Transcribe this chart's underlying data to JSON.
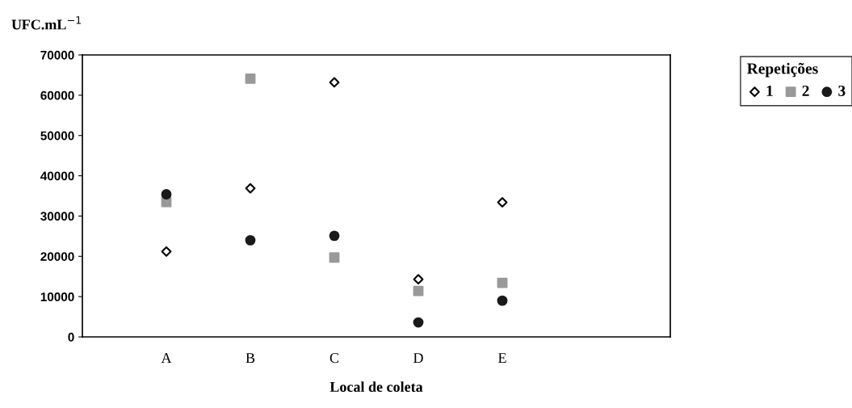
{
  "chart_data": {
    "type": "scatter",
    "xlabel": "Local de coleta",
    "ylabel": "UFC.mL$^{−1}$",
    "legend_title": "Repetições",
    "legend": "top right",
    "categories": [
      "A",
      "B",
      "C",
      "D",
      "E"
    ],
    "ylim": [
      0,
      70000
    ],
    "yticks": [
      0,
      10000,
      20000,
      30000,
      40000,
      50000,
      60000,
      70000
    ],
    "grid": false,
    "series": [
      {
        "name": "1",
        "color": "#ffffff",
        "marker": "diamond",
        "values": [
          21200,
          36900,
          63200,
          14300,
          33400
        ]
      },
      {
        "name": "2",
        "color": "#999999",
        "marker": "square",
        "values": [
          33500,
          64100,
          19700,
          11400,
          13400
        ]
      },
      {
        "name": "3",
        "color": "#1a1a1a",
        "marker": "circle",
        "values": [
          35400,
          24000,
          25100,
          3600,
          9000
        ]
      }
    ]
  }
}
